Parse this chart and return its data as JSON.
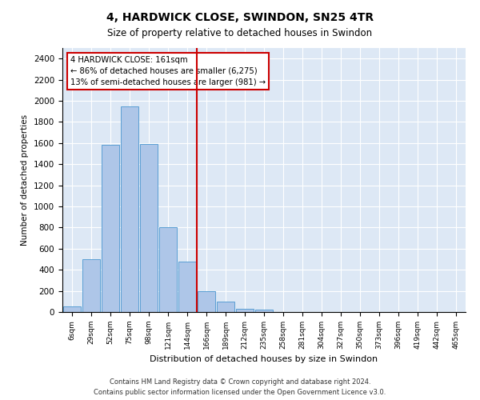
{
  "title": "4, HARDWICK CLOSE, SWINDON, SN25 4TR",
  "subtitle": "Size of property relative to detached houses in Swindon",
  "xlabel": "Distribution of detached houses by size in Swindon",
  "ylabel": "Number of detached properties",
  "bar_labels": [
    "6sqm",
    "29sqm",
    "52sqm",
    "75sqm",
    "98sqm",
    "121sqm",
    "144sqm",
    "166sqm",
    "189sqm",
    "212sqm",
    "235sqm",
    "258sqm",
    "281sqm",
    "304sqm",
    "327sqm",
    "350sqm",
    "373sqm",
    "396sqm",
    "419sqm",
    "442sqm",
    "465sqm"
  ],
  "bar_heights": [
    50,
    500,
    1580,
    1950,
    1590,
    800,
    480,
    200,
    95,
    30,
    20,
    0,
    0,
    0,
    0,
    0,
    0,
    0,
    0,
    0,
    0
  ],
  "bar_color": "#aec6e8",
  "bar_edge_color": "#5a9fd4",
  "vline_label": "166sqm",
  "marker_label": "4 HARDWICK CLOSE: 161sqm",
  "annotation_line1": "← 86% of detached houses are smaller (6,275)",
  "annotation_line2": "13% of semi-detached houses are larger (981) →",
  "vline_color": "#cc0000",
  "box_edge_color": "#cc0000",
  "ylim": [
    0,
    2500
  ],
  "yticks": [
    0,
    200,
    400,
    600,
    800,
    1000,
    1200,
    1400,
    1600,
    1800,
    2000,
    2200,
    2400
  ],
  "bg_color": "#dde8f5",
  "footer1": "Contains HM Land Registry data © Crown copyright and database right 2024.",
  "footer2": "Contains public sector information licensed under the Open Government Licence v3.0."
}
